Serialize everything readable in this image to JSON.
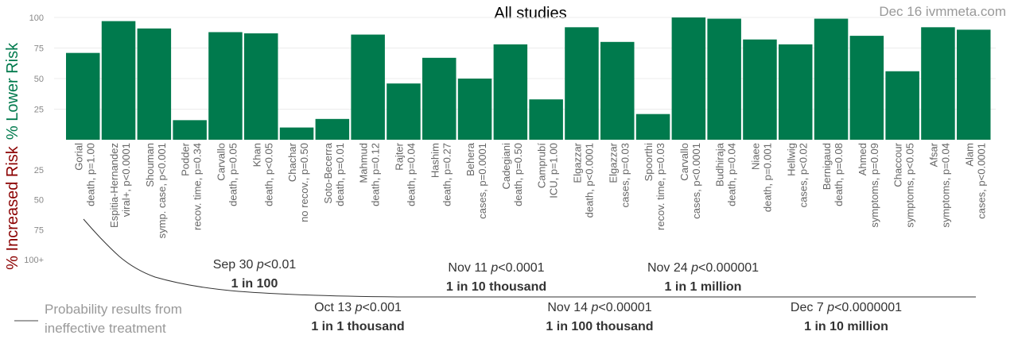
{
  "chart_data": {
    "type": "bar",
    "title": "All studies",
    "credit": "Dec 16 ivmmeta.com",
    "ylabel_lower": "% Lower Risk",
    "ylabel_increased": "% Increased Risk",
    "yticks_upper": [
      "25",
      "50",
      "75",
      "100"
    ],
    "yticks_lower": [
      "25",
      "50",
      "75",
      "100+"
    ],
    "ylim": [
      0,
      100
    ],
    "bar_color": "#007a4d",
    "categories": [
      {
        "name": "Gorial",
        "detail": "death, p=1.00",
        "value": 71
      },
      {
        "name": "Espitia-Hernandez",
        "detail": "viral+, p<0.0001",
        "value": 97
      },
      {
        "name": "Shouman",
        "detail": "symp. case, p<0.001",
        "value": 91
      },
      {
        "name": "Podder",
        "detail": "recov. time, p=0.34",
        "value": 16
      },
      {
        "name": "Carvallo",
        "detail": "death, p=0.05",
        "value": 88
      },
      {
        "name": "Khan",
        "detail": "death, p<0.05",
        "value": 87
      },
      {
        "name": "Chachar",
        "detail": "no recov., p=0.50",
        "value": 10
      },
      {
        "name": "Soto-Becerra",
        "detail": "death, p=0.01",
        "value": 17
      },
      {
        "name": "Mahmud",
        "detail": "death, p=0.12",
        "value": 86
      },
      {
        "name": "Rajter",
        "detail": "death, p=0.04",
        "value": 46
      },
      {
        "name": "Hashim",
        "detail": "death, p=0.27",
        "value": 67
      },
      {
        "name": "Behera",
        "detail": "cases, p=0.0001",
        "value": 50
      },
      {
        "name": "Cadegiani",
        "detail": "death, p=0.50",
        "value": 78
      },
      {
        "name": "Camprubí",
        "detail": "ICU, p=1.00",
        "value": 33
      },
      {
        "name": "Elgazzar",
        "detail": "death, p<0.0001",
        "value": 92
      },
      {
        "name": "Elgazzar",
        "detail": "cases, p=0.03",
        "value": 80
      },
      {
        "name": "Spoorthi",
        "detail": "recov. time, p=0.03",
        "value": 21
      },
      {
        "name": "Carvallo",
        "detail": "cases, p<0.0001",
        "value": 100
      },
      {
        "name": "Budhiraja",
        "detail": "death, p=0.04",
        "value": 99
      },
      {
        "name": "Niaee",
        "detail": "death, p=0.001",
        "value": 82
      },
      {
        "name": "Hellwig",
        "detail": "cases, p<0.02",
        "value": 78
      },
      {
        "name": "Bernigaud",
        "detail": "death, p=0.08",
        "value": 99
      },
      {
        "name": "Ahmed",
        "detail": "symptoms, p=0.09",
        "value": 85
      },
      {
        "name": "Chaccour",
        "detail": "symptoms, p<0.05",
        "value": 56
      },
      {
        "name": "Afsar",
        "detail": "symptoms, p=0.04",
        "value": 92
      },
      {
        "name": "Alam",
        "detail": "cases, p<0.0001",
        "value": 90
      }
    ],
    "annotations": [
      {
        "date": "Sep 30",
        "p": "p<0.01",
        "odds": "1 in 100"
      },
      {
        "date": "Oct 13",
        "p": "p<0.001",
        "odds": "1 in 1 thousand"
      },
      {
        "date": "Nov 11",
        "p": "p<0.0001",
        "odds": "1 in 10 thousand"
      },
      {
        "date": "Nov 14",
        "p": "p<0.00001",
        "odds": "1 in 100 thousand"
      },
      {
        "date": "Nov 24",
        "p": "p<0.000001",
        "odds": "1 in 1 million"
      },
      {
        "date": "Dec 7",
        "p": "p<0.0000001",
        "odds": "1 in 10 million"
      }
    ],
    "legend": {
      "line1": "Probability results from",
      "line2": "ineffective treatment"
    }
  }
}
